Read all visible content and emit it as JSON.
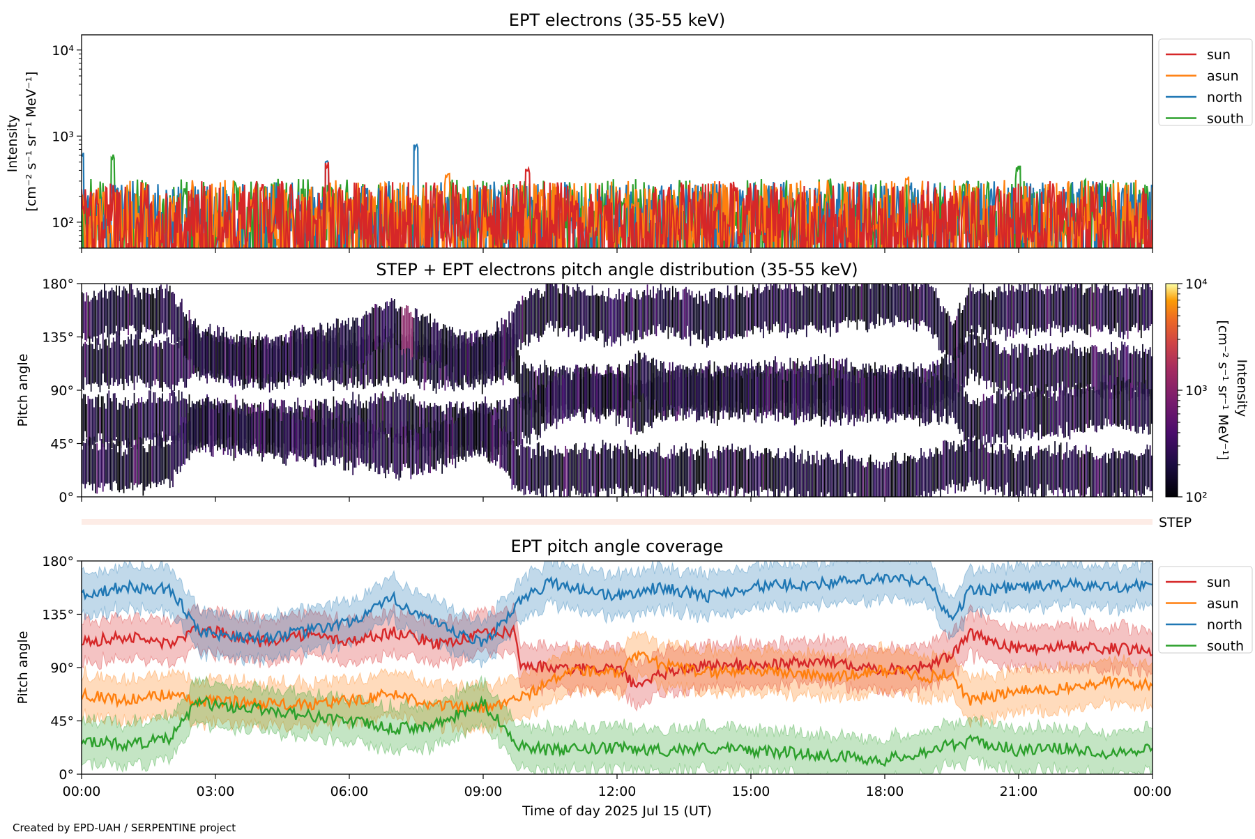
{
  "footer": "Created by EPD-UAH / SERPENTINE project",
  "xlabel": "Time of day 2025 Jul 15 (UT)",
  "x_ticks": [
    "00:00",
    "03:00",
    "06:00",
    "09:00",
    "12:00",
    "15:00",
    "18:00",
    "21:00",
    "00:00"
  ],
  "colors": {
    "sun": "#d62728",
    "asun": "#ff7f0e",
    "north": "#1f77b4",
    "south": "#2ca02c"
  },
  "chart_data": [
    {
      "type": "line",
      "title": "EPT electrons (35-55 keV)",
      "ylabel_line1": "Intensity",
      "ylabel_line2": "[cm⁻² s⁻¹ sr⁻¹ MeV⁻¹]",
      "yscale": "log",
      "ylim": [
        50,
        15000
      ],
      "y_ticks": [
        "10²",
        "10³",
        "10⁴"
      ],
      "y_tick_values": [
        100,
        1000,
        10000
      ],
      "x_range_hours": [
        0,
        24
      ],
      "legend_position": "outside-right-top",
      "series": [
        {
          "name": "sun",
          "color": "#d62728",
          "typical_range": [
            50,
            300
          ],
          "peaks": [
            [
              5.5,
              500
            ],
            [
              10.0,
              420
            ]
          ]
        },
        {
          "name": "asun",
          "color": "#ff7f0e",
          "typical_range": [
            50,
            310
          ],
          "peaks": [
            [
              8.2,
              380
            ],
            [
              18.5,
              340
            ]
          ]
        },
        {
          "name": "north",
          "color": "#1f77b4",
          "typical_range": [
            60,
            300
          ],
          "peaks": [
            [
              0.0,
              650
            ],
            [
              7.5,
              820
            ],
            [
              5.5,
              520
            ]
          ]
        },
        {
          "name": "south",
          "color": "#2ca02c",
          "typical_range": [
            60,
            320
          ],
          "peaks": [
            [
              0.7,
              620
            ],
            [
              21.0,
              470
            ]
          ]
        }
      ]
    },
    {
      "type": "heatmap",
      "title": "STEP + EPT electrons pitch angle distribution (35-55 keV)",
      "ylabel": "Pitch angle",
      "ylim": [
        0,
        180
      ],
      "y_ticks": [
        "0°",
        "45°",
        "90°",
        "135°",
        "180°"
      ],
      "y_tick_values": [
        0,
        45,
        90,
        135,
        180
      ],
      "x_range_hours": [
        0,
        24
      ],
      "colorbar": {
        "label_line1": "Intensity",
        "label_line2": "[cm⁻² s⁻¹ sr⁻¹ MeV⁻¹]",
        "ticks": [
          "10²",
          "10³",
          "10⁴"
        ],
        "tick_values": [
          100,
          1000,
          10000
        ],
        "colormap": "inferno",
        "scale": "log"
      }
    },
    {
      "type": "bar",
      "label": "STEP",
      "color": "#fdece6"
    },
    {
      "type": "line",
      "title": "EPT pitch angle coverage",
      "ylabel": "Pitch angle",
      "ylim": [
        0,
        180
      ],
      "y_ticks": [
        "0°",
        "45°",
        "90°",
        "135°",
        "180°"
      ],
      "y_tick_values": [
        0,
        45,
        90,
        135,
        180
      ],
      "x_range_hours": [
        0,
        24
      ],
      "legend_position": "outside-right-top",
      "band_half_width_deg": 18,
      "series": [
        {
          "name": "sun",
          "color": "#d62728",
          "x": [
            0,
            1,
            2,
            2.6,
            3,
            4,
            5,
            6,
            7,
            8,
            9,
            9.7,
            9.85,
            11,
            12,
            12.5,
            13,
            14,
            15,
            16,
            17,
            18,
            19,
            19.5,
            19.9,
            21,
            22,
            23,
            24
          ],
          "y": [
            112,
            116,
            110,
            122,
            120,
            112,
            118,
            112,
            120,
            110,
            118,
            120,
            92,
            88,
            90,
            72,
            85,
            92,
            92,
            94,
            95,
            88,
            92,
            100,
            118,
            106,
            108,
            106,
            105
          ]
        },
        {
          "name": "asun",
          "color": "#ff7f0e",
          "x": [
            0,
            1,
            2,
            2.6,
            3,
            4,
            5,
            6,
            7,
            8,
            9,
            9.7,
            11,
            12,
            12.5,
            13,
            14,
            15,
            16,
            17,
            18,
            19,
            19.5,
            19.9,
            21,
            22,
            23,
            24
          ],
          "y": [
            68,
            62,
            68,
            60,
            62,
            60,
            58,
            62,
            68,
            58,
            55,
            62,
            88,
            85,
            100,
            92,
            86,
            88,
            85,
            82,
            88,
            82,
            85,
            62,
            70,
            72,
            78,
            75
          ]
        },
        {
          "name": "north",
          "color": "#1f77b4",
          "x": [
            0,
            1,
            2,
            2.6,
            3,
            4,
            5,
            6,
            7,
            8,
            9,
            9.8,
            10.5,
            12,
            13,
            14,
            15,
            16,
            17,
            18,
            19,
            19.5,
            19.9,
            21,
            22,
            23,
            24
          ],
          "y": [
            152,
            158,
            156,
            122,
            118,
            115,
            120,
            128,
            148,
            125,
            110,
            145,
            162,
            150,
            158,
            150,
            158,
            160,
            162,
            165,
            162,
            128,
            155,
            158,
            160,
            158,
            160
          ]
        },
        {
          "name": "south",
          "color": "#2ca02c",
          "x": [
            0,
            1,
            2,
            2.6,
            3,
            4,
            5,
            6,
            7,
            8,
            9,
            9.8,
            10.5,
            12,
            13,
            14,
            15,
            16,
            17,
            18,
            19,
            19.5,
            20,
            21,
            22,
            23,
            24
          ],
          "y": [
            28,
            25,
            30,
            62,
            58,
            55,
            50,
            45,
            38,
            42,
            60,
            25,
            20,
            22,
            20,
            22,
            20,
            18,
            15,
            12,
            20,
            25,
            28,
            20,
            22,
            18,
            22
          ]
        }
      ]
    }
  ]
}
